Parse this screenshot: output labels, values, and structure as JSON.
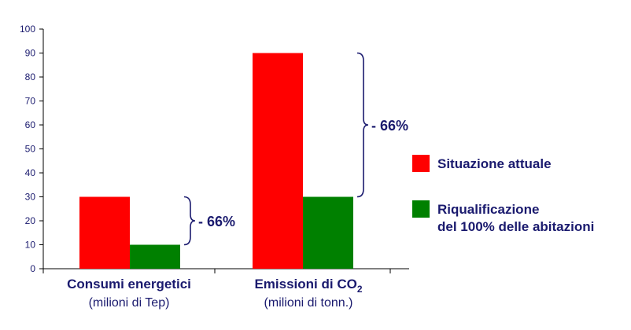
{
  "colors": {
    "series_red": "#ff0000",
    "series_green": "#008000",
    "text": "#1a1a6e",
    "axis": "#000000",
    "brace": "#1a1a6e"
  },
  "chart_data": {
    "type": "bar",
    "categories": [
      {
        "main": "Consumi energetici",
        "sub": "(milioni di Tep)"
      },
      {
        "main": "Emissioni di CO",
        "main_subscript": "2",
        "sub": "(milioni di tonn.)"
      }
    ],
    "series": [
      {
        "name": "Situazione attuale",
        "color": "#ff0000",
        "values": [
          30,
          90
        ]
      },
      {
        "name": "Riqualificazione del 100% delle abitazioni",
        "name_lines": [
          "Riqualificazione",
          "del 100% delle abitazioni"
        ],
        "color": "#008000",
        "values": [
          10,
          30
        ]
      }
    ],
    "ylim": [
      0,
      100
    ],
    "yticks": [
      0,
      10,
      20,
      30,
      40,
      50,
      60,
      70,
      80,
      90,
      100
    ],
    "legend_position": "right",
    "grid": false,
    "annotations": [
      {
        "category_index": 0,
        "label": "- 66%",
        "from": 10,
        "to": 30
      },
      {
        "category_index": 1,
        "label": "- 66%",
        "from": 30,
        "to": 90
      }
    ]
  }
}
